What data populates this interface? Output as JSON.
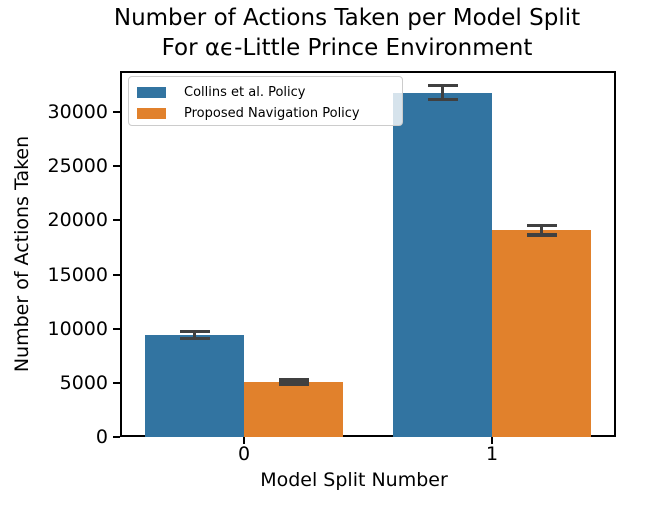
{
  "figure": {
    "title_lines": [
      "Number of Actions Taken per Model Split",
      "For αϵ-Little Prince Environment"
    ]
  },
  "chart_data": {
    "type": "bar",
    "title": "Number of Actions Taken per Model Split For αϵ-Little Prince Environment",
    "title_lines": [
      "Number of Actions Taken per Model Split",
      "For αϵ-Little Prince Environment"
    ],
    "xlabel": "Model Split Number",
    "ylabel": "Number of Actions Taken",
    "categories": [
      "0",
      "1"
    ],
    "series": [
      {
        "name": "Collins et al. Policy",
        "color": "#3274a1",
        "values": [
          9400,
          31800
        ],
        "errors": [
          320,
          650
        ]
      },
      {
        "name": "Proposed Navigation Policy",
        "color": "#e1812c",
        "values": [
          5080,
          19100
        ],
        "errors": [
          200,
          450
        ]
      }
    ],
    "error_bar_color": "#404040",
    "yticks": [
      0,
      5000,
      10000,
      15000,
      20000,
      25000,
      30000
    ],
    "ylim": [
      0,
      33800
    ],
    "legend_position": "upper left",
    "grid": false
  }
}
